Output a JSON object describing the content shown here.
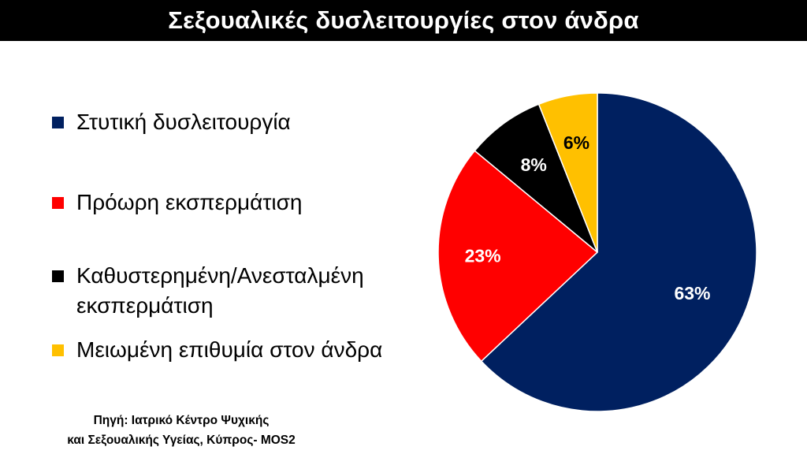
{
  "title": "Σεξουαλικές δυσλειτουργίες στον άνδρα",
  "source": {
    "line1": "Πηγή: Ιατρικό Κέντρο Ψυχικής",
    "line2": "και Σεξουαλικής Υγείας, Κύπρος- MOS2"
  },
  "chart_data": {
    "type": "pie",
    "title": "Σεξουαλικές δυσλειτουργίες στον άνδρα",
    "legend": "left",
    "slices": [
      {
        "label": "Στυτική δυσλειτουργία",
        "value": 63,
        "display": "63%",
        "color": "#002060",
        "text_color": "#ffffff"
      },
      {
        "label": "Πρόωρη εκσπερμάτιση",
        "value": 23,
        "display": "23%",
        "color": "#ff0000",
        "text_color": "#ffffff"
      },
      {
        "label": "Καθυστερημένη/Ανεσταλμένη εκσπερμάτιση",
        "value": 8,
        "display": "8%",
        "color": "#000000",
        "text_color": "#ffffff"
      },
      {
        "label": "Μειωμένη επιθυμία στον άνδρα",
        "value": 6,
        "display": "6%",
        "color": "#ffc000",
        "text_color": "#000000"
      }
    ]
  }
}
